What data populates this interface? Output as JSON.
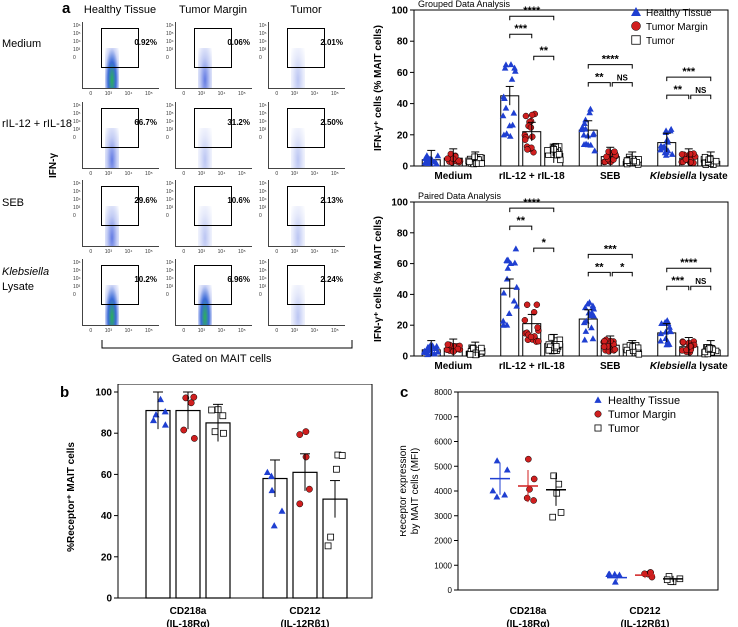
{
  "panels": {
    "a": "a",
    "b": "b",
    "c": "c"
  },
  "flow": {
    "columns": [
      "Healthy Tissue",
      "Tumor Margin",
      "Tumor"
    ],
    "rows": [
      {
        "label": "Medium",
        "label2": "",
        "pcts": [
          "0.92%",
          "0.06%",
          "2.01%"
        ]
      },
      {
        "label": "rIL-12 + rIL-18",
        "label2": "",
        "pcts": [
          "66.7%",
          "31.2%",
          "2.50%"
        ]
      },
      {
        "label": "SEB",
        "label2": "",
        "pcts": [
          "29.6%",
          "10.6%",
          "2.13%"
        ]
      },
      {
        "label": "Klebsiella",
        "label2": "Lysate",
        "pcts": [
          "10.2%",
          "6.96%",
          "2.24%"
        ]
      }
    ],
    "y_axis_label": "IFN-γ",
    "footer": "Gated on MAIT cells",
    "y_ticks": [
      "10⁶",
      "10⁵",
      "10⁴",
      "10³",
      "0"
    ],
    "x_ticks": [
      "0",
      "10³",
      "10⁴",
      "10⁵"
    ]
  },
  "colors": {
    "healthy": "#1f3fd1",
    "margin": "#d01f1f",
    "tumor": "#ffffff"
  },
  "chart_data": [
    {
      "type": "bar",
      "title": "Grouped Data Analysis",
      "ylabel": "IFN-γ⁺ cells (% MAIT cells)",
      "ylim": [
        0,
        100
      ],
      "yticks": [
        0,
        20,
        40,
        60,
        80,
        100
      ],
      "categories": [
        "Medium",
        "rIL-12 + rIL-18",
        "SEB",
        "Klebsiella lysate"
      ],
      "legend_position": "top-right",
      "series": [
        {
          "name": "Healthy Tissue",
          "values": [
            4,
            45,
            23,
            15
          ]
        },
        {
          "name": "Tumor Margin",
          "values": [
            5,
            22,
            6,
            5
          ]
        },
        {
          "name": "Tumor",
          "values": [
            3,
            8,
            3,
            3
          ]
        }
      ],
      "significance": [
        {
          "category": "rIL-12 + rIL-18",
          "lines": [
            "****",
            "***",
            "**"
          ]
        },
        {
          "category": "SEB",
          "lines": [
            "****",
            "**",
            "NS"
          ]
        },
        {
          "category": "Klebsiella lysate",
          "lines": [
            "***",
            "**",
            "NS"
          ]
        }
      ]
    },
    {
      "type": "bar",
      "title": "Paired Data Analysis",
      "ylabel": "IFN-γ⁺ cells (% MAIT cells)",
      "ylim": [
        0,
        100
      ],
      "yticks": [
        0,
        20,
        40,
        60,
        80,
        100
      ],
      "categories": [
        "Medium",
        "rIL-12 + rIL-18",
        "SEB",
        "Klebsiella lysate"
      ],
      "series": [
        {
          "name": "Healthy Tissue",
          "values": [
            4,
            44,
            24,
            15
          ]
        },
        {
          "name": "Tumor Margin",
          "values": [
            5,
            21,
            7,
            6
          ]
        },
        {
          "name": "Tumor",
          "values": [
            3,
            8,
            4,
            4
          ]
        }
      ],
      "significance": [
        {
          "category": "rIL-12 + rIL-18",
          "lines": [
            "****",
            "**",
            "*"
          ]
        },
        {
          "category": "SEB",
          "lines": [
            "***",
            "**",
            "*"
          ]
        },
        {
          "category": "Klebsiella lysate",
          "lines": [
            "****",
            "***",
            "NS"
          ]
        }
      ]
    },
    {
      "type": "bar",
      "ylabel": "%Receptor⁺ MAIT cells",
      "ylim": [
        0,
        100
      ],
      "yticks": [
        0,
        20,
        40,
        60,
        80,
        100
      ],
      "categories": [
        "CD218a (IL-18Rα)",
        "CD212 (IL-12Rβ1)"
      ],
      "series": [
        {
          "name": "Healthy Tissue",
          "values": [
            91,
            58
          ]
        },
        {
          "name": "Tumor Margin",
          "values": [
            91,
            61
          ]
        },
        {
          "name": "Tumor",
          "values": [
            85,
            48
          ]
        }
      ]
    },
    {
      "type": "scatter",
      "ylabel": "Receptor expression by MAIT cells (MFI)",
      "ylim": [
        0,
        8000
      ],
      "yticks": [
        0,
        1000,
        2000,
        3000,
        4000,
        5000,
        6000,
        7000,
        8000
      ],
      "categories": [
        "CD218a (IL-18Rα)",
        "CD212 (IL-12Rβ1)"
      ],
      "legend_position": "top-right",
      "series": [
        {
          "name": "Healthy Tissue",
          "values": [
            4500,
            500
          ]
        },
        {
          "name": "Tumor Margin",
          "values": [
            4200,
            600
          ]
        },
        {
          "name": "Tumor",
          "values": [
            4050,
            450
          ]
        }
      ]
    }
  ]
}
